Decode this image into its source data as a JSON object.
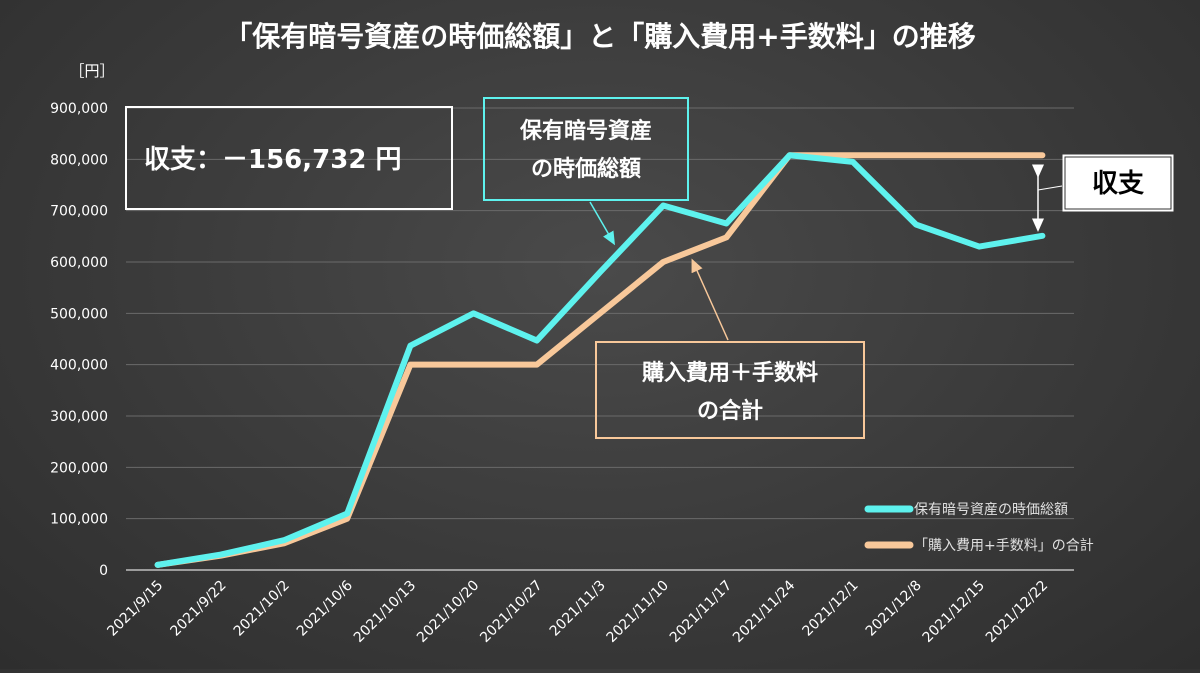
{
  "chart_data": {
    "type": "line",
    "title": "「保有暗号資産の時価総額」と「購入費用+手数料」の推移",
    "unit_label": "［円］",
    "ylim": [
      0,
      900000
    ],
    "yticks": [
      "900,000",
      "800,000",
      "700,000",
      "600,000",
      "500,000",
      "400,000",
      "300,000",
      "200,000",
      "100,000",
      "0"
    ],
    "ytick_values": [
      900000,
      800000,
      700000,
      600000,
      500000,
      400000,
      300000,
      200000,
      100000,
      0
    ],
    "categories": [
      "2021/9/15",
      "2021/9/22",
      "2021/10/2",
      "2021/10/6",
      "2021/10/13",
      "2021/10/20",
      "2021/10/27",
      "2021/11/3",
      "2021/11/10",
      "2021/11/17",
      "2021/11/24",
      "2021/12/1",
      "2021/12/8",
      "2021/12/15",
      "2021/12/22"
    ],
    "grid": true,
    "legend_position": "bottom-right",
    "series": [
      {
        "name": "保有暗号資産の時価総額",
        "color": "#5ef2ee",
        "values": [
          10000,
          30000,
          58000,
          110000,
          437000,
          500000,
          447000,
          580000,
          710000,
          675000,
          808000,
          795000,
          673000,
          630000,
          651000
        ]
      },
      {
        "name": "「購入費用+手数料」の合計",
        "color": "#f8c89a",
        "values": [
          10000,
          28000,
          52000,
          100000,
          400000,
          400000,
          400000,
          500000,
          600000,
          648000,
          808000,
          808000,
          808000,
          808000,
          808000
        ]
      }
    ],
    "annotations": {
      "balance_box": "収支：－156,732 円",
      "market_callout_line1": "保有暗号資産",
      "market_callout_line2": "の時価総額",
      "cost_callout_line1": "購入費用＋手数料",
      "cost_callout_line2": "の合計",
      "balance_label": "収支"
    }
  }
}
